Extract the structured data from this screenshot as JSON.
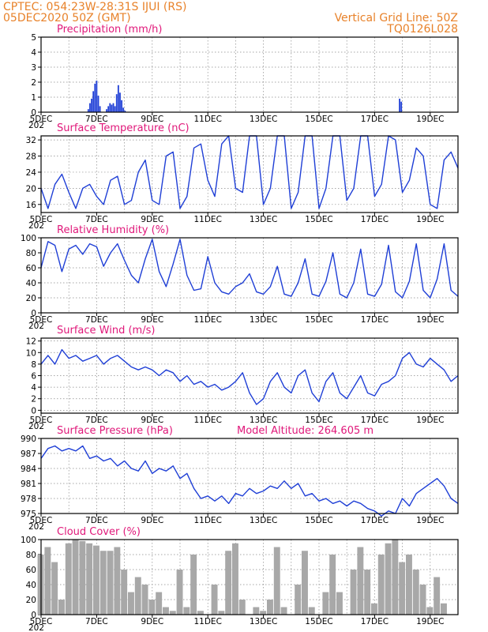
{
  "header": {
    "line1": "CPTEC:   054:23W-28:31S   IJUI (RS)",
    "line2": "05DEC2020 50Z (GMT)",
    "grid_note": "Vertical Grid Line: 50Z",
    "code": "TQ0126L028"
  },
  "colors": {
    "header": "#e8822a",
    "title": "#e0187a",
    "series": "#1f3fd6",
    "cloud": "#a8a8a8"
  },
  "x_axis": {
    "labels": [
      "5DEC",
      "7DEC",
      "9DEC",
      "11DEC",
      "13DEC",
      "15DEC",
      "17DEC",
      "19DEC"
    ],
    "label_days": [
      0,
      2,
      4,
      6,
      8,
      10,
      12,
      14
    ],
    "domain_days": [
      0,
      15
    ],
    "grid_days": [
      1,
      2,
      3,
      4,
      5,
      6,
      7,
      8,
      9,
      10,
      11,
      12,
      13,
      14
    ],
    "year_stub": "202"
  },
  "chart_data": [
    {
      "type": "bar",
      "title": "Precipitation (mm/h)",
      "ylim": [
        0,
        5
      ],
      "yticks": [
        0,
        1,
        2,
        3,
        4,
        5
      ],
      "x_days": [
        1.7,
        1.76,
        1.82,
        1.88,
        1.94,
        2.0,
        2.06,
        2.12,
        2.36,
        2.42,
        2.48,
        2.54,
        2.6,
        2.66,
        2.72,
        2.78,
        2.84,
        2.9,
        2.96,
        3.02,
        12.9,
        12.96
      ],
      "values": [
        0.2,
        0.6,
        0.9,
        1.4,
        1.9,
        2.1,
        1.1,
        0.4,
        0.2,
        0.4,
        0.6,
        0.5,
        0.6,
        0.4,
        1.2,
        1.8,
        1.3,
        0.8,
        0.3,
        0.1,
        0.9,
        0.7
      ]
    },
    {
      "type": "line",
      "title": "Surface Temperature (nC)",
      "ylim": [
        14,
        33
      ],
      "yticks": [
        16,
        20,
        24,
        28,
        32
      ],
      "x_days": [
        0,
        0.25,
        0.5,
        0.75,
        1.0,
        1.25,
        1.5,
        1.75,
        2.0,
        2.25,
        2.5,
        2.75,
        3.0,
        3.25,
        3.5,
        3.75,
        4.0,
        4.25,
        4.5,
        4.75,
        5.0,
        5.25,
        5.5,
        5.75,
        6.0,
        6.25,
        6.5,
        6.75,
        7.0,
        7.25,
        7.5,
        7.75,
        8.0,
        8.25,
        8.5,
        8.75,
        9.0,
        9.25,
        9.5,
        9.75,
        10.0,
        10.25,
        10.5,
        10.75,
        11.0,
        11.25,
        11.5,
        11.75,
        12.0,
        12.25,
        12.5,
        12.75,
        13.0,
        13.25,
        13.5,
        13.75,
        14.0,
        14.25,
        14.5,
        14.75,
        15.0
      ],
      "values": [
        20,
        15,
        21,
        23.5,
        19,
        15,
        20,
        21,
        18,
        16,
        22,
        23,
        16,
        17,
        24,
        27,
        17,
        16,
        28,
        29,
        15,
        18,
        30,
        31,
        22,
        18,
        31,
        33,
        20,
        19,
        33,
        33,
        16,
        20,
        33,
        33,
        15,
        19,
        33,
        33,
        15,
        20,
        33,
        33,
        17,
        20,
        33,
        33,
        18,
        21,
        33,
        32,
        19,
        22,
        30,
        28,
        16,
        15,
        27,
        29,
        25
      ]
    },
    {
      "type": "line",
      "title": "Relative Humidity (%)",
      "ylim": [
        0,
        100
      ],
      "yticks": [
        0,
        20,
        40,
        60,
        80,
        100
      ],
      "x_days": [
        0,
        0.25,
        0.5,
        0.75,
        1.0,
        1.25,
        1.5,
        1.75,
        2.0,
        2.25,
        2.5,
        2.75,
        3.0,
        3.25,
        3.5,
        3.75,
        4.0,
        4.25,
        4.5,
        4.75,
        5.0,
        5.25,
        5.5,
        5.75,
        6.0,
        6.25,
        6.5,
        6.75,
        7.0,
        7.25,
        7.5,
        7.75,
        8.0,
        8.25,
        8.5,
        8.75,
        9.0,
        9.25,
        9.5,
        9.75,
        10.0,
        10.25,
        10.5,
        10.75,
        11.0,
        11.25,
        11.5,
        11.75,
        12.0,
        12.25,
        12.5,
        12.75,
        13.0,
        13.25,
        13.5,
        13.75,
        14.0,
        14.25,
        14.5,
        14.75,
        15.0
      ],
      "values": [
        60,
        95,
        90,
        55,
        85,
        90,
        78,
        92,
        88,
        62,
        80,
        92,
        70,
        50,
        40,
        72,
        98,
        55,
        35,
        65,
        98,
        50,
        30,
        32,
        75,
        40,
        28,
        25,
        35,
        40,
        52,
        28,
        25,
        35,
        62,
        25,
        22,
        40,
        72,
        25,
        22,
        42,
        80,
        25,
        20,
        40,
        85,
        25,
        22,
        38,
        90,
        28,
        20,
        42,
        92,
        30,
        20,
        45,
        92,
        30,
        22
      ]
    },
    {
      "type": "line",
      "title": "Surface Wind (m/s)",
      "ylim": [
        -0.5,
        12.5
      ],
      "yticks": [
        0,
        2,
        4,
        6,
        8,
        10,
        12
      ],
      "x_days": [
        0,
        0.25,
        0.5,
        0.75,
        1.0,
        1.25,
        1.5,
        1.75,
        2.0,
        2.25,
        2.5,
        2.75,
        3.0,
        3.25,
        3.5,
        3.75,
        4.0,
        4.25,
        4.5,
        4.75,
        5.0,
        5.25,
        5.5,
        5.75,
        6.0,
        6.25,
        6.5,
        6.75,
        7.0,
        7.25,
        7.5,
        7.75,
        8.0,
        8.25,
        8.5,
        8.75,
        9.0,
        9.25,
        9.5,
        9.75,
        10.0,
        10.25,
        10.5,
        10.75,
        11.0,
        11.25,
        11.5,
        11.75,
        12.0,
        12.25,
        12.5,
        12.75,
        13.0,
        13.25,
        13.5,
        13.75,
        14.0,
        14.25,
        14.5,
        14.75,
        15.0
      ],
      "values": [
        8,
        9.5,
        8,
        10.5,
        9,
        9.5,
        8.5,
        9,
        9.5,
        8,
        9,
        9.5,
        8.5,
        7.5,
        7,
        7.5,
        7,
        6,
        7,
        6.5,
        5,
        6,
        4.5,
        5,
        4,
        4.5,
        3.5,
        4,
        5,
        6.5,
        3,
        1,
        2,
        5,
        6.5,
        4,
        3,
        6,
        7,
        3,
        1.5,
        5,
        6.5,
        3,
        2,
        4,
        6,
        3,
        2.5,
        4.5,
        5,
        6,
        9,
        10,
        8,
        7.5,
        9,
        8,
        7,
        5,
        6
      ]
    },
    {
      "type": "line",
      "title": "Surface Pressure (hPa)",
      "annotation": "Model Altitude: 264.605 m",
      "ylim": [
        975,
        990
      ],
      "yticks": [
        975,
        978,
        981,
        984,
        987,
        990
      ],
      "x_days": [
        0,
        0.25,
        0.5,
        0.75,
        1.0,
        1.25,
        1.5,
        1.75,
        2.0,
        2.25,
        2.5,
        2.75,
        3.0,
        3.25,
        3.5,
        3.75,
        4.0,
        4.25,
        4.5,
        4.75,
        5.0,
        5.25,
        5.5,
        5.75,
        6.0,
        6.25,
        6.5,
        6.75,
        7.0,
        7.25,
        7.5,
        7.75,
        8.0,
        8.25,
        8.5,
        8.75,
        9.0,
        9.25,
        9.5,
        9.75,
        10.0,
        10.25,
        10.5,
        10.75,
        11.0,
        11.25,
        11.5,
        11.75,
        12.0,
        12.25,
        12.5,
        12.75,
        13.0,
        13.25,
        13.5,
        13.75,
        14.0,
        14.25,
        14.5,
        14.75,
        15.0
      ],
      "values": [
        986,
        988,
        988.5,
        987.5,
        988,
        987.5,
        988.5,
        986,
        986.5,
        985.5,
        986,
        984.5,
        985.5,
        984,
        983.5,
        985.5,
        983,
        984,
        983.5,
        984.5,
        982,
        983,
        980,
        978,
        978.5,
        977.5,
        978.5,
        977,
        979,
        978.5,
        980,
        979,
        979.5,
        980.5,
        980,
        981.5,
        980,
        981,
        978.5,
        979,
        977.5,
        978,
        977,
        977.5,
        976.5,
        977.5,
        977,
        976,
        975.5,
        974.5,
        975.5,
        975,
        978,
        976.5,
        979,
        980,
        981,
        982,
        980.5,
        978,
        977
      ]
    },
    {
      "type": "area",
      "title": "Cloud Cover (%)",
      "ylim": [
        0,
        100
      ],
      "yticks": [
        0,
        20,
        40,
        60,
        80,
        100
      ],
      "x_days": [
        0,
        0.25,
        0.5,
        0.75,
        1.0,
        1.25,
        1.5,
        1.75,
        2.0,
        2.25,
        2.5,
        2.75,
        3.0,
        3.25,
        3.5,
        3.75,
        4.0,
        4.25,
        4.5,
        4.75,
        5.0,
        5.25,
        5.5,
        5.75,
        6.0,
        6.25,
        6.5,
        6.75,
        7.0,
        7.25,
        7.5,
        7.75,
        8.0,
        8.25,
        8.5,
        8.75,
        9.0,
        9.25,
        9.5,
        9.75,
        10.0,
        10.25,
        10.5,
        10.75,
        11.0,
        11.25,
        11.5,
        11.75,
        12.0,
        12.25,
        12.5,
        12.75,
        13.0,
        13.25,
        13.5,
        13.75,
        14.0,
        14.25,
        14.5,
        14.75,
        15.0
      ],
      "values": [
        80,
        90,
        70,
        20,
        95,
        100,
        98,
        95,
        92,
        85,
        85,
        90,
        60,
        30,
        50,
        40,
        20,
        30,
        10,
        5,
        60,
        10,
        80,
        5,
        0,
        40,
        5,
        85,
        95,
        20,
        0,
        10,
        5,
        20,
        90,
        10,
        0,
        40,
        85,
        10,
        0,
        30,
        80,
        30,
        0,
        60,
        90,
        60,
        15,
        80,
        95,
        100,
        70,
        80,
        60,
        40,
        10,
        50,
        15,
        0,
        0
      ]
    }
  ]
}
